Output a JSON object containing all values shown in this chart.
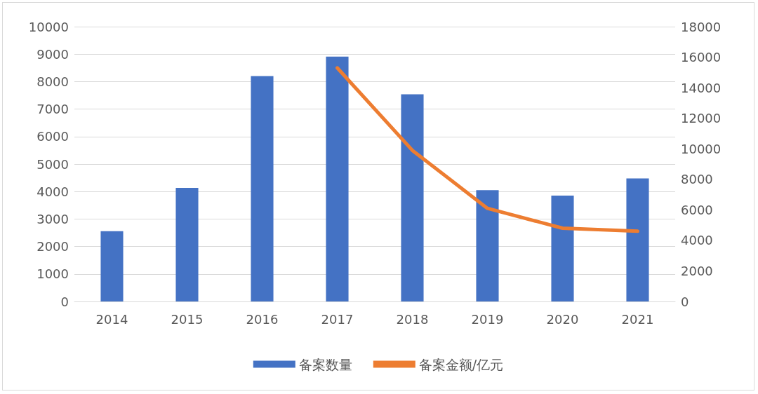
{
  "chart_data": {
    "type": "bar",
    "categories": [
      "2014",
      "2015",
      "2016",
      "2017",
      "2018",
      "2019",
      "2020",
      "2021"
    ],
    "series": [
      {
        "name": "备案数量",
        "color": "#4472c4",
        "values": [
          2560,
          4130,
          8200,
          8910,
          7540,
          4050,
          3850,
          4480
        ]
      },
      {
        "name": "备案金额/亿元",
        "type": "line",
        "axis": "y2",
        "color": "#ed7d31",
        "values": [
          null,
          null,
          null,
          15300,
          9900,
          6100,
          4800,
          4600
        ]
      }
    ],
    "ylim": [
      0,
      10000
    ],
    "yticks": [
      0,
      1000,
      2000,
      3000,
      4000,
      5000,
      6000,
      7000,
      8000,
      9000,
      10000
    ],
    "y2lim": [
      0,
      18000
    ],
    "y2ticks": [
      0,
      2000,
      4000,
      6000,
      8000,
      10000,
      12000,
      14000,
      16000,
      18000
    ],
    "grid": "y",
    "legend": "bottom",
    "marker": "none",
    "line_style": "solid"
  }
}
